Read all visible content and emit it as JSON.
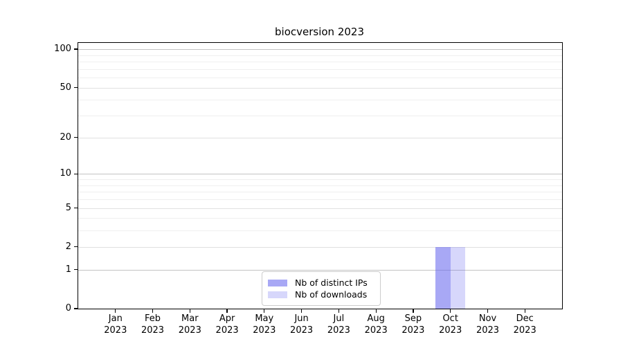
{
  "chart_data": {
    "type": "bar",
    "title": "biocversion 2023",
    "x_categories": [
      {
        "month": "Jan",
        "year": "2023"
      },
      {
        "month": "Feb",
        "year": "2023"
      },
      {
        "month": "Mar",
        "year": "2023"
      },
      {
        "month": "Apr",
        "year": "2023"
      },
      {
        "month": "May",
        "year": "2023"
      },
      {
        "month": "Jun",
        "year": "2023"
      },
      {
        "month": "Jul",
        "year": "2023"
      },
      {
        "month": "Aug",
        "year": "2023"
      },
      {
        "month": "Sep",
        "year": "2023"
      },
      {
        "month": "Oct",
        "year": "2023"
      },
      {
        "month": "Nov",
        "year": "2023"
      },
      {
        "month": "Dec",
        "year": "2023"
      }
    ],
    "series": [
      {
        "name": "Nb of distinct IPs",
        "base_color": "#6666ee",
        "alpha": 0.57,
        "values": [
          0,
          0,
          0,
          0,
          0,
          0,
          0,
          0,
          0,
          2,
          0,
          0
        ]
      },
      {
        "name": "Nb of downloads",
        "base_color": "#6666ee",
        "alpha": 0.26,
        "values": [
          0,
          0,
          0,
          0,
          0,
          0,
          0,
          0,
          0,
          2,
          0,
          0
        ]
      }
    ],
    "y_scale": "log10(value+1)",
    "y_major_ticks": [
      0,
      1,
      2,
      5,
      10,
      20,
      50,
      100
    ],
    "y_decade_gridlines": [
      1,
      10,
      100
    ],
    "y_minor_gridlines": [
      3,
      4,
      6,
      7,
      8,
      9,
      30,
      40,
      60,
      70,
      80,
      90
    ],
    "ylim": [
      0,
      112
    ],
    "grid": "horizontal",
    "legend": {
      "position": "bottom-center",
      "entries": [
        "Nb of distinct IPs",
        "Nb of downloads"
      ]
    },
    "colors": {
      "decade_gridline": "#c3c3c3",
      "labeled_gridline": "#e0e0e0",
      "minor_gridline": "#efefef",
      "axis_frame": "#000000",
      "text": "#000000",
      "background": "#ffffff"
    }
  }
}
